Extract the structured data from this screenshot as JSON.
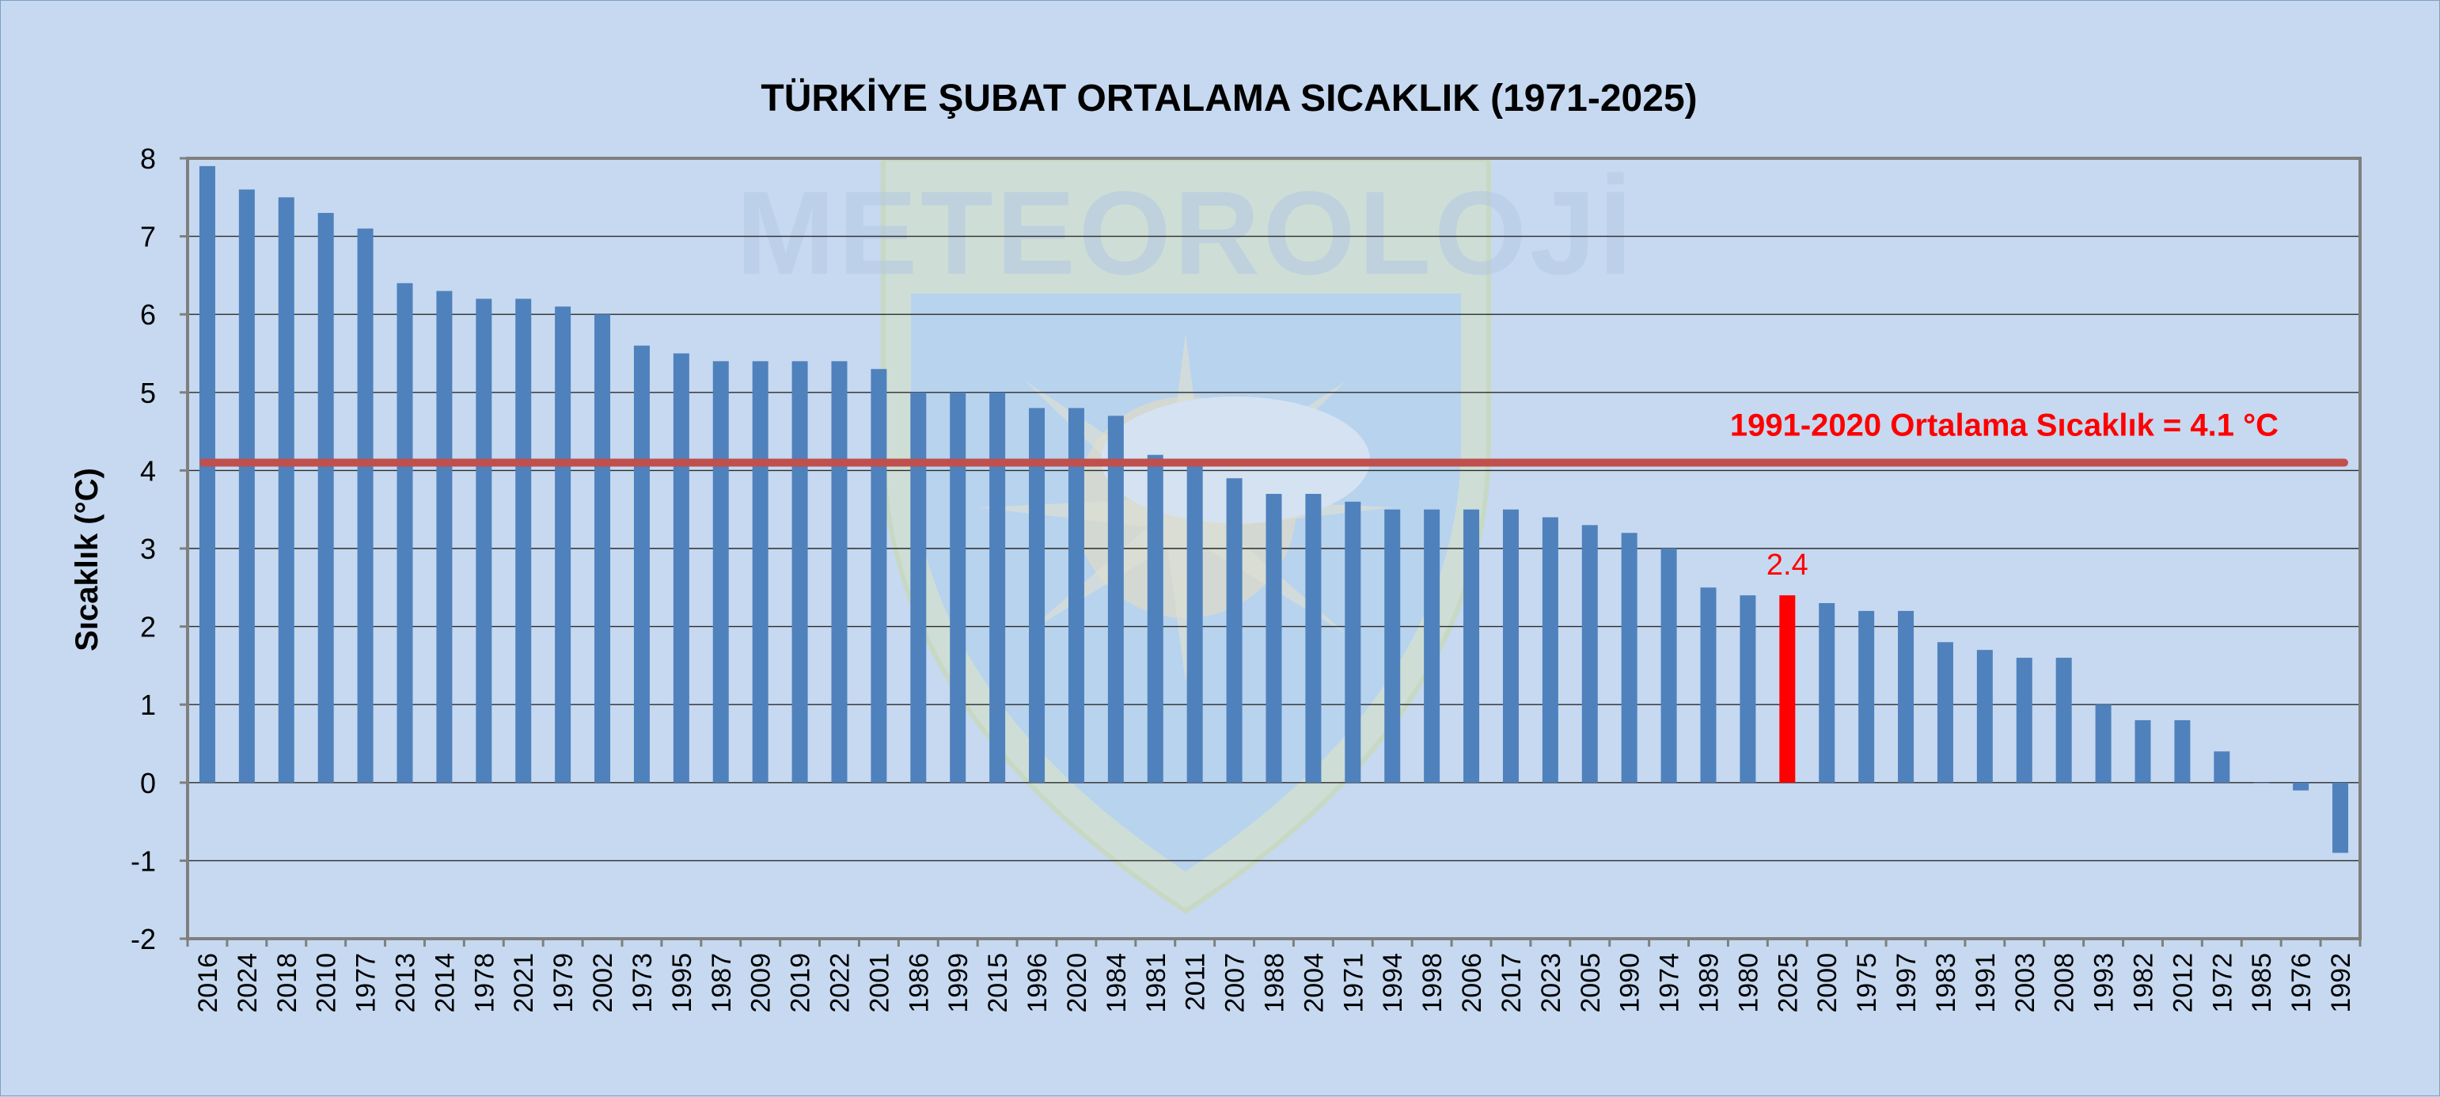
{
  "chart_data": {
    "type": "bar",
    "title": "TÜRKİYE ŞUBAT ORTALAMA SICAKLIK (1971-2025)",
    "xlabel": "",
    "ylabel": "Sıcaklık (°C)",
    "ylim": [
      -2,
      8
    ],
    "yticks": [
      "8",
      "7",
      "6",
      "5",
      "4",
      "3",
      "2",
      "1",
      "0",
      "-1",
      "-2"
    ],
    "grid": true,
    "legend": "none",
    "categories": [
      "2016",
      "2024",
      "2018",
      "2010",
      "1977",
      "2013",
      "2014",
      "1978",
      "2021",
      "1979",
      "2002",
      "1973",
      "1995",
      "1987",
      "2009",
      "2019",
      "2022",
      "2001",
      "1986",
      "1999",
      "2015",
      "1996",
      "2020",
      "1984",
      "1981",
      "2011",
      "2007",
      "1988",
      "2004",
      "1971",
      "1994",
      "1998",
      "2006",
      "2017",
      "2023",
      "2005",
      "1990",
      "1974",
      "1989",
      "1980",
      "2025",
      "2000",
      "1975",
      "1997",
      "1983",
      "1991",
      "2003",
      "2008",
      "1993",
      "1982",
      "2012",
      "1972",
      "1985",
      "1976",
      "1992"
    ],
    "values": [
      7.9,
      7.6,
      7.5,
      7.3,
      7.1,
      6.4,
      6.3,
      6.2,
      6.2,
      6.1,
      6.0,
      5.6,
      5.5,
      5.4,
      5.4,
      5.4,
      5.4,
      5.3,
      5.0,
      5.0,
      5.0,
      4.8,
      4.8,
      4.7,
      4.2,
      4.1,
      3.9,
      3.7,
      3.7,
      3.6,
      3.5,
      3.5,
      3.5,
      3.5,
      3.4,
      3.3,
      3.2,
      3.0,
      2.5,
      2.4,
      2.4,
      2.3,
      2.2,
      2.2,
      1.8,
      1.7,
      1.6,
      1.6,
      1.0,
      0.8,
      0.8,
      0.4,
      0.0,
      -0.1,
      -0.9
    ],
    "highlight": {
      "category": "2025",
      "value": 2.4,
      "label": "2.4",
      "color": "#ff0000"
    },
    "reference_line": {
      "value": 4.1,
      "label": "1991-2020 Ortalama Sıcaklık = 4.1 °C",
      "color": "#c0504d"
    },
    "bar_color": "#4f81bd"
  },
  "watermark": {
    "text": "METEOROLOJİ"
  }
}
